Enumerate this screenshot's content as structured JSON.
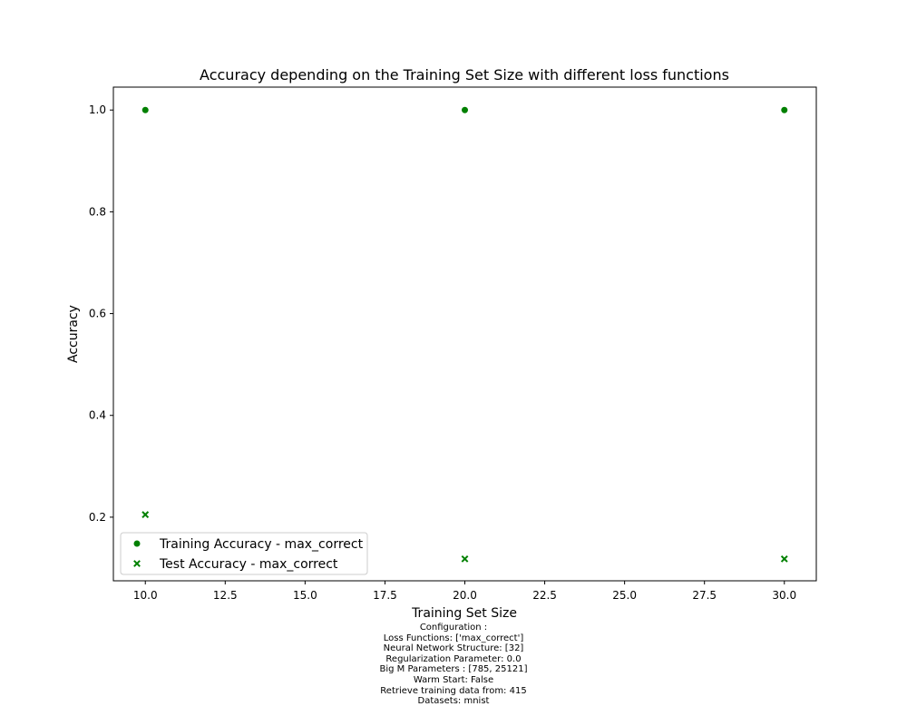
{
  "chart_data": {
    "type": "scatter",
    "title": "Accuracy depending on the Training Set Size with different loss functions",
    "xlabel": "Training Set Size",
    "ylabel": "Accuracy",
    "xlim": [
      9.0,
      31.0
    ],
    "ylim": [
      0.075,
      1.045
    ],
    "xticks": [
      "10.0",
      "12.5",
      "15.0",
      "17.5",
      "20.0",
      "22.5",
      "25.0",
      "27.5",
      "30.0"
    ],
    "xtick_values": [
      10.0,
      12.5,
      15.0,
      17.5,
      20.0,
      22.5,
      25.0,
      27.5,
      30.0
    ],
    "yticks": [
      "0.2",
      "0.4",
      "0.6",
      "0.8",
      "1.0"
    ],
    "ytick_values": [
      0.2,
      0.4,
      0.6,
      0.8,
      1.0
    ],
    "grid": false,
    "legend_position": "lower-left",
    "series": [
      {
        "name": "Training Accuracy - max_correct",
        "marker": "circle",
        "color": "#008000",
        "x": [
          10,
          20,
          30
        ],
        "y": [
          1.0,
          1.0,
          1.0
        ]
      },
      {
        "name": "Test Accuracy - max_correct",
        "marker": "x",
        "color": "#008000",
        "x": [
          10,
          20,
          30
        ],
        "y": [
          0.205,
          0.118,
          0.118
        ]
      }
    ]
  },
  "caption": {
    "lines": [
      "Configuration :",
      "Loss Functions: ['max_correct']",
      "Neural Network Structure: [32]",
      "Regularization Parameter: 0.0",
      "Big M Parameters : [785, 25121]",
      "Warm Start: False",
      "Retrieve training data from: 415",
      "Datasets: mnist"
    ]
  }
}
